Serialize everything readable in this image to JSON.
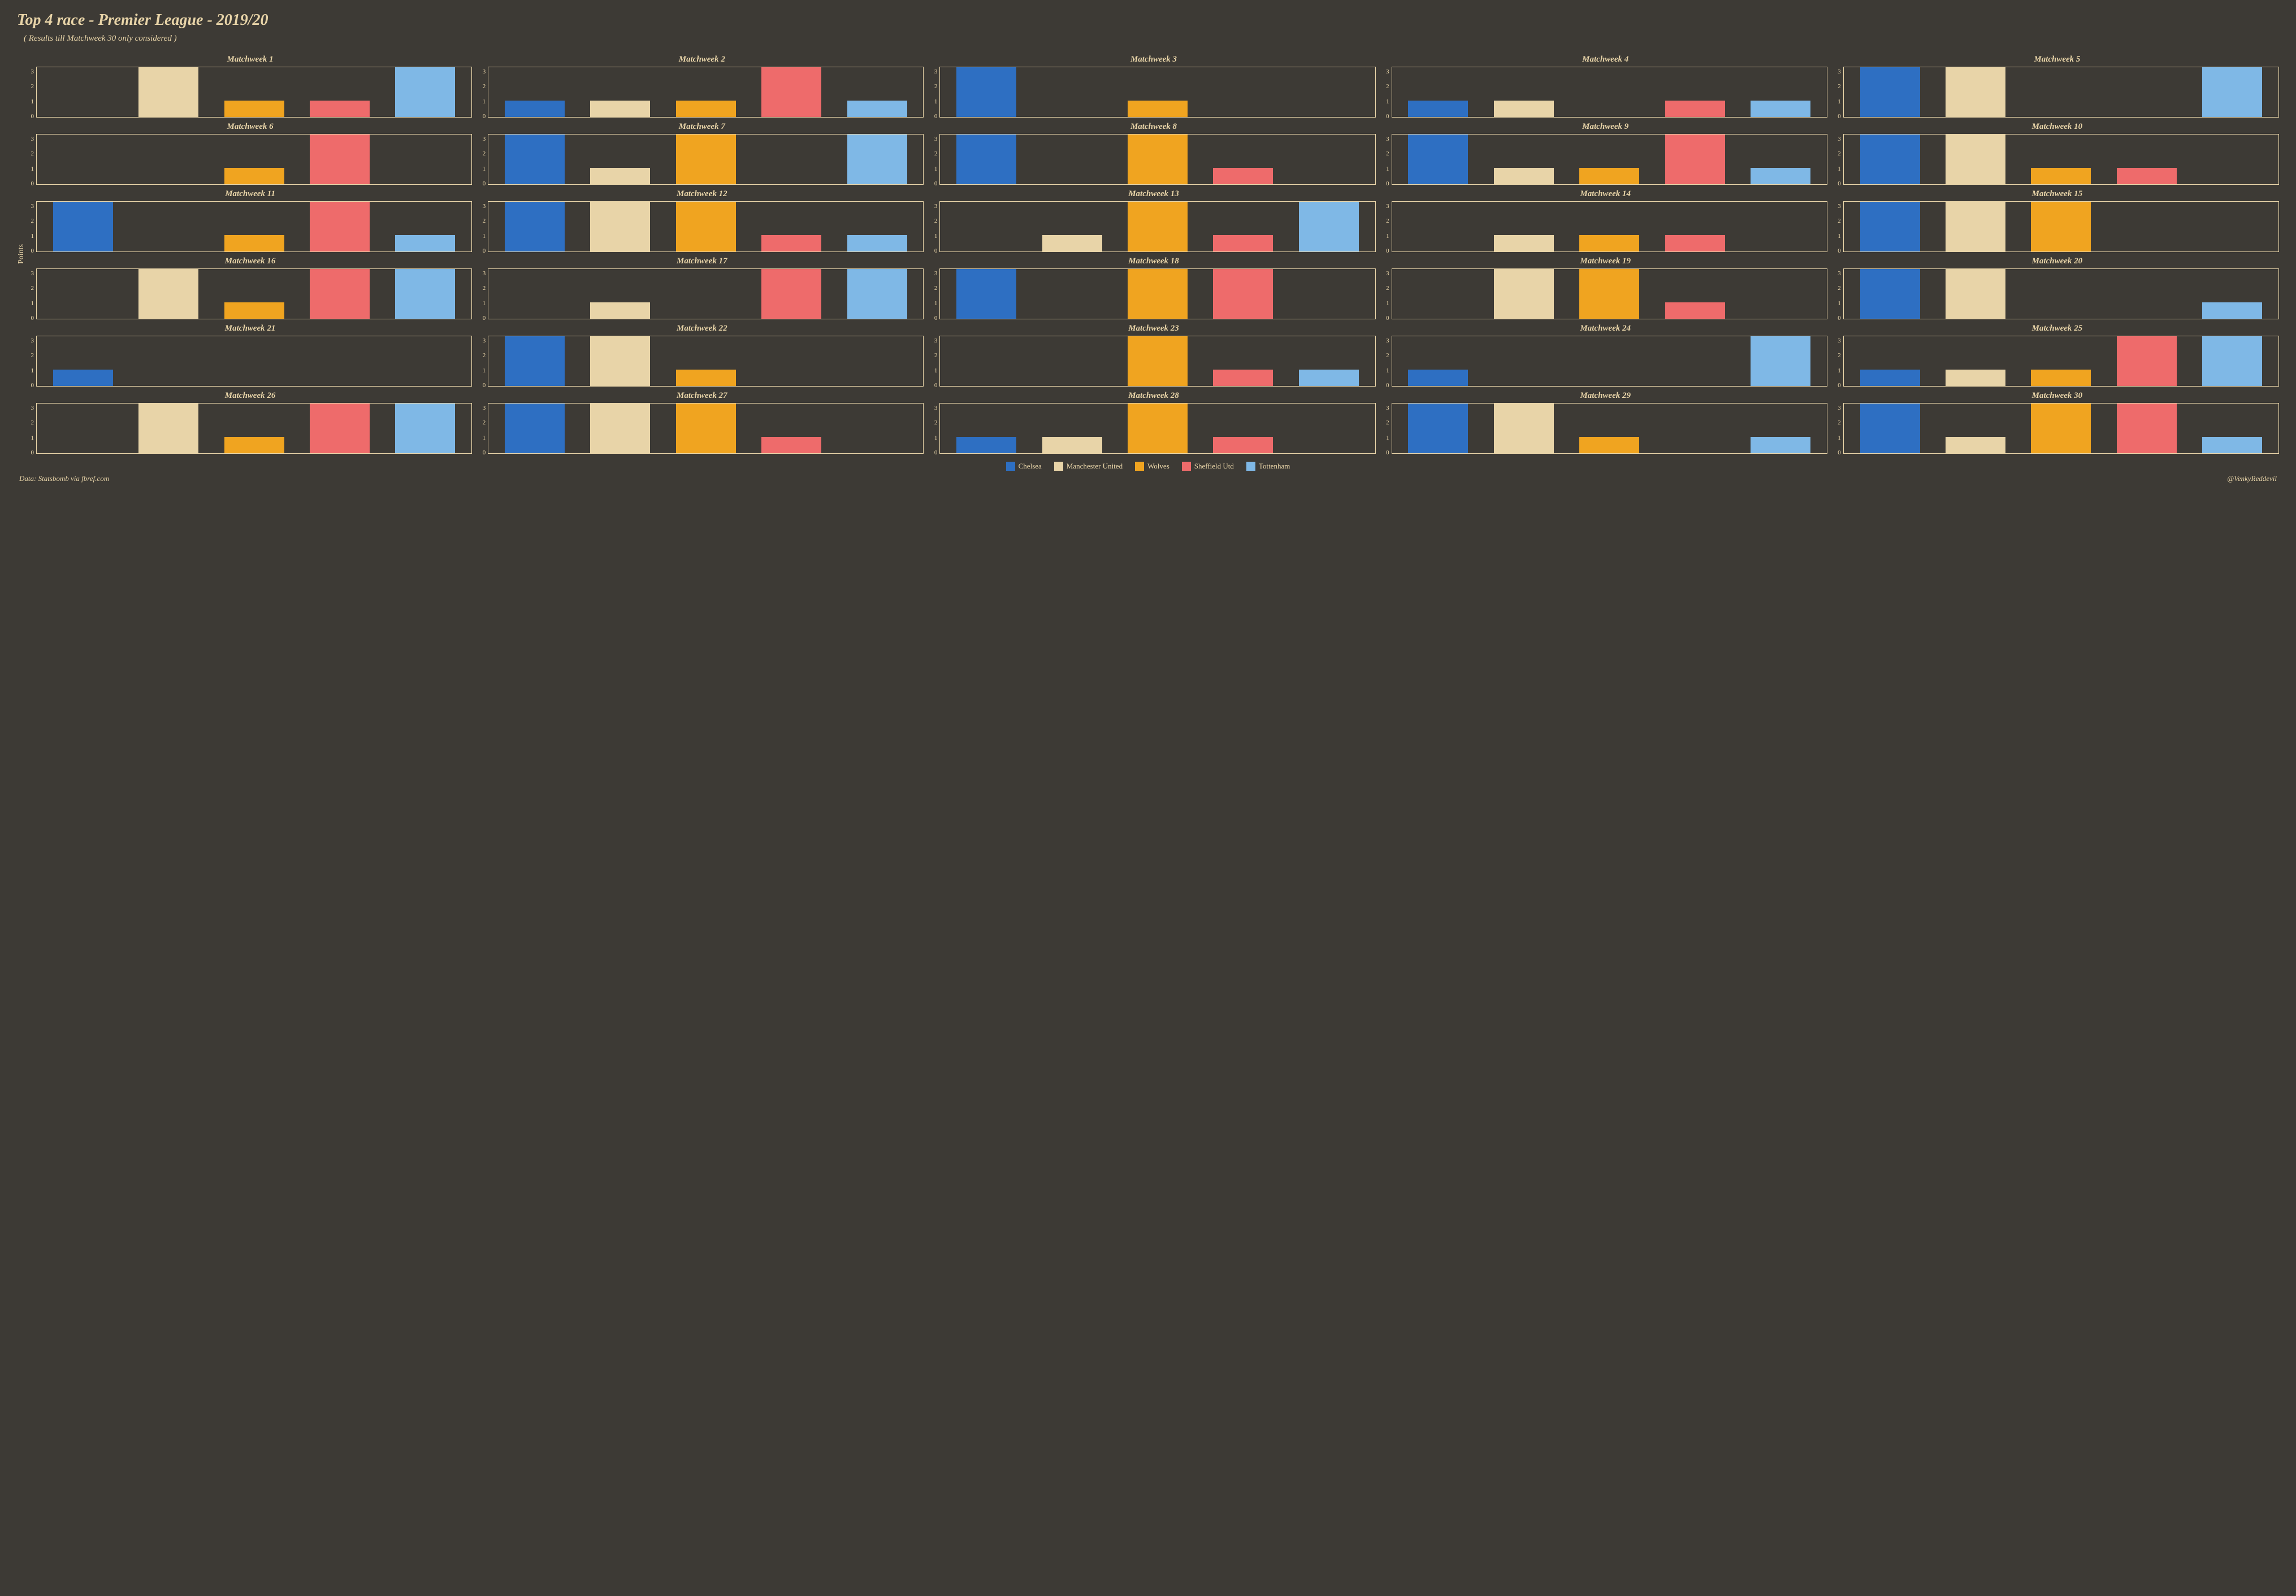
{
  "title": "Top 4 race - Premier League - 2019/20",
  "subtitle": "( Results till Matchweek 30 only considered )",
  "ylabel": "Points",
  "footer_left": "Data: Statsbomb via fbref.com",
  "footer_right": "@VenkyReddevil",
  "background_color": "#3d3a35",
  "text_color": "#e8d4a8",
  "border_color": "#e8d4a8",
  "ylim": [
    0,
    3
  ],
  "yticks": [
    0,
    1,
    2,
    3
  ],
  "panel_title_prefix": "Matchweek ",
  "teams": [
    {
      "name": "Chelsea",
      "color": "#2e6fc2"
    },
    {
      "name": "Manchester United",
      "color": "#e8d4a8"
    },
    {
      "name": "Wolves",
      "color": "#f0a420"
    },
    {
      "name": "Sheffield Utd",
      "color": "#ee6b6b"
    },
    {
      "name": "Tottenham",
      "color": "#7fb8e6"
    }
  ],
  "matchweeks": [
    {
      "n": 1,
      "values": [
        0,
        3,
        1,
        1,
        3
      ]
    },
    {
      "n": 2,
      "values": [
        1,
        1,
        1,
        3,
        1
      ]
    },
    {
      "n": 3,
      "values": [
        3,
        0,
        1,
        0,
        0
      ]
    },
    {
      "n": 4,
      "values": [
        1,
        1,
        0,
        1,
        1
      ]
    },
    {
      "n": 5,
      "values": [
        3,
        3,
        0,
        0,
        3
      ]
    },
    {
      "n": 6,
      "values": [
        0,
        0,
        1,
        3,
        0
      ]
    },
    {
      "n": 7,
      "values": [
        3,
        1,
        3,
        0,
        3
      ]
    },
    {
      "n": 8,
      "values": [
        3,
        0,
        3,
        1,
        0
      ]
    },
    {
      "n": 9,
      "values": [
        3,
        1,
        1,
        3,
        1
      ]
    },
    {
      "n": 10,
      "values": [
        3,
        3,
        1,
        1,
        0
      ]
    },
    {
      "n": 11,
      "values": [
        3,
        0,
        1,
        3,
        1
      ]
    },
    {
      "n": 12,
      "values": [
        3,
        3,
        3,
        1,
        1
      ]
    },
    {
      "n": 13,
      "values": [
        0,
        1,
        3,
        1,
        3
      ]
    },
    {
      "n": 14,
      "values": [
        0,
        1,
        1,
        1,
        0
      ]
    },
    {
      "n": 15,
      "values": [
        3,
        3,
        3,
        0,
        0
      ]
    },
    {
      "n": 16,
      "values": [
        0,
        3,
        1,
        3,
        3
      ]
    },
    {
      "n": 17,
      "values": [
        0,
        1,
        0,
        3,
        3
      ]
    },
    {
      "n": 18,
      "values": [
        3,
        0,
        3,
        3,
        0
      ]
    },
    {
      "n": 19,
      "values": [
        0,
        3,
        3,
        1,
        0
      ]
    },
    {
      "n": 20,
      "values": [
        3,
        3,
        0,
        0,
        1
      ]
    },
    {
      "n": 21,
      "values": [
        1,
        0,
        0,
        0,
        0
      ]
    },
    {
      "n": 22,
      "values": [
        3,
        3,
        1,
        0,
        0
      ]
    },
    {
      "n": 23,
      "values": [
        0,
        0,
        3,
        1,
        1
      ]
    },
    {
      "n": 24,
      "values": [
        1,
        0,
        0,
        0,
        3
      ]
    },
    {
      "n": 25,
      "values": [
        1,
        1,
        1,
        3,
        3
      ]
    },
    {
      "n": 26,
      "values": [
        0,
        3,
        1,
        3,
        3
      ]
    },
    {
      "n": 27,
      "values": [
        3,
        3,
        3,
        1,
        0
      ]
    },
    {
      "n": 28,
      "values": [
        1,
        1,
        3,
        1,
        0
      ]
    },
    {
      "n": 29,
      "values": [
        3,
        3,
        1,
        0,
        1
      ]
    },
    {
      "n": 30,
      "values": [
        3,
        1,
        3,
        3,
        1
      ]
    }
  ]
}
